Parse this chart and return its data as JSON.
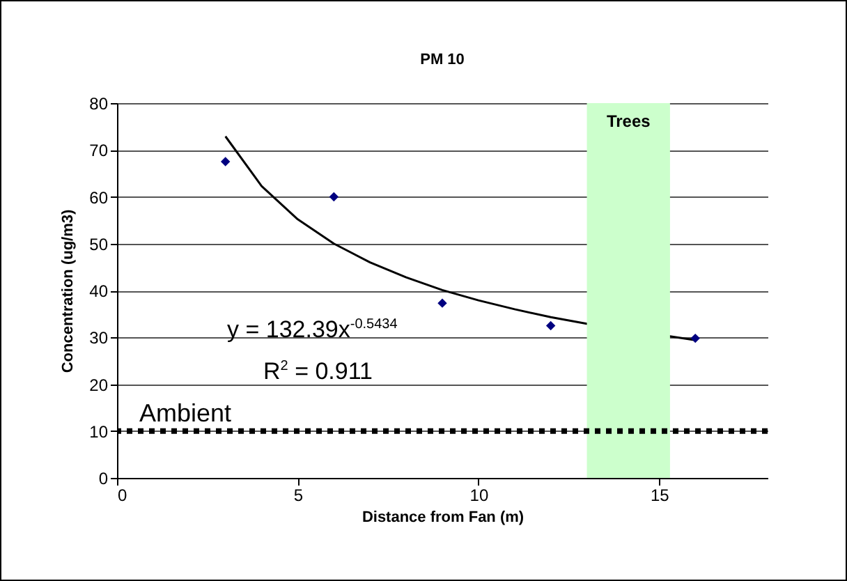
{
  "chart_data": {
    "type": "scatter",
    "title": "PM 10",
    "xlabel": "Distance from Fan (m)",
    "ylabel": "Concentration (ug/m3)",
    "xlim": [
      0,
      18
    ],
    "xticks": [
      0,
      5,
      10,
      15
    ],
    "ylim": [
      0,
      80
    ],
    "yticks": [
      0,
      10,
      20,
      30,
      40,
      50,
      60,
      70,
      80
    ],
    "grid": "y",
    "series": [
      {
        "type": "line",
        "color": "#000000",
        "marker": "none",
        "line_style": "solid",
        "x": [
          3,
          4,
          5,
          6,
          7,
          8,
          9,
          10,
          11,
          12,
          13,
          14,
          15,
          16
        ],
        "values": [
          72.9,
          62.3,
          55.2,
          50.0,
          46.0,
          42.8,
          40.1,
          37.9,
          36.0,
          34.3,
          32.9,
          null,
          null,
          29.4
        ]
      },
      {
        "color": "#000080",
        "marker": "diamond",
        "x": [
          3,
          6,
          9,
          12,
          16
        ],
        "values": [
          67.5,
          60.0,
          37.3,
          32.5,
          29.8
        ]
      }
    ],
    "ref_lines": [
      {
        "axis": "y",
        "value": 10,
        "label": "Ambient",
        "color": "#000000",
        "line_style": "dotted"
      }
    ],
    "bands": [
      {
        "axis": "x",
        "from": 13,
        "to": 15.3,
        "label": "Trees",
        "color": "#ccffcc"
      }
    ],
    "annotations": [
      "y = 132.39x$^{-0.5434}$",
      "R$^{2}$ = 0.911"
    ]
  }
}
